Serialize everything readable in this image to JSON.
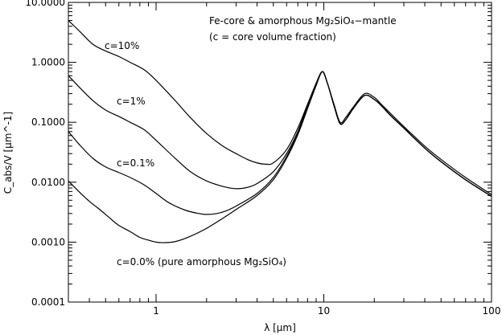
{
  "chart_data": {
    "type": "line",
    "xlabel": "λ [μm]",
    "ylabel": "C_abs/V [μm^-1]",
    "xscale": "log",
    "yscale": "log",
    "xlim": [
      0.3,
      100
    ],
    "ylim": [
      0.0001,
      10
    ],
    "grid": false,
    "legend": "none",
    "x_ticks": [
      {
        "value": 1,
        "label": "1"
      },
      {
        "value": 10,
        "label": "10"
      },
      {
        "value": 100,
        "label": "100"
      }
    ],
    "y_ticks": [
      {
        "value": 10,
        "label": "10.0000"
      },
      {
        "value": 1,
        "label": "1.0000"
      },
      {
        "value": 0.1,
        "label": "0.1000"
      },
      {
        "value": 0.01,
        "label": "0.0100"
      },
      {
        "value": 0.001,
        "label": "0.0010"
      },
      {
        "value": 0.0001,
        "label": "0.0001"
      }
    ],
    "annotations": {
      "title_line1": "Fe-core & amorphous Mg₂SiO₄−mantle",
      "title_line2": "(c = core volume fraction)",
      "c10": "c=10%",
      "c1": "c=1%",
      "c01": "c=0.1%",
      "c0": "c=0.0% (pure amorphous Mg₂SiO₄)"
    },
    "series": [
      {
        "name": "c=10%",
        "x": [
          0.3,
          0.35,
          0.42,
          0.5,
          0.6,
          0.7,
          0.85,
          1.0,
          1.3,
          1.6,
          2.0,
          2.5,
          3.0,
          3.5,
          4.0,
          4.5,
          5.0,
          6.0,
          7.0,
          8.0,
          9.0,
          9.8,
          10.5,
          11.5,
          12.5,
          13.5,
          15.0,
          17.5,
          20.0,
          22.0,
          25.0,
          30.0,
          40.0,
          50.0,
          70.0,
          100.0
        ],
        "y": [
          5.0,
          3.3,
          2.0,
          1.55,
          1.25,
          1.0,
          0.75,
          0.5,
          0.23,
          0.12,
          0.065,
          0.04,
          0.03,
          0.024,
          0.021,
          0.02,
          0.021,
          0.035,
          0.08,
          0.2,
          0.45,
          0.7,
          0.45,
          0.2,
          0.1,
          0.12,
          0.18,
          0.3,
          0.26,
          0.2,
          0.14,
          0.085,
          0.04,
          0.024,
          0.012,
          0.0062
        ]
      },
      {
        "name": "c=1%",
        "x": [
          0.3,
          0.35,
          0.42,
          0.5,
          0.6,
          0.7,
          0.85,
          1.0,
          1.3,
          1.6,
          2.0,
          2.5,
          3.0,
          3.5,
          4.0,
          5.0,
          6.0,
          7.0,
          8.0,
          9.0,
          9.8,
          10.5,
          11.5,
          12.5,
          13.5,
          15.0,
          17.5,
          20.0,
          22.0,
          25.0,
          30.0,
          40.0,
          50.0,
          70.0,
          100.0
        ],
        "y": [
          0.6,
          0.38,
          0.23,
          0.16,
          0.125,
          0.1,
          0.075,
          0.05,
          0.025,
          0.015,
          0.0105,
          0.0085,
          0.0078,
          0.0082,
          0.0095,
          0.015,
          0.03,
          0.07,
          0.19,
          0.43,
          0.7,
          0.45,
          0.19,
          0.095,
          0.11,
          0.17,
          0.28,
          0.24,
          0.19,
          0.13,
          0.08,
          0.037,
          0.022,
          0.011,
          0.0058
        ]
      },
      {
        "name": "c=0.1%",
        "x": [
          0.3,
          0.35,
          0.42,
          0.5,
          0.6,
          0.7,
          0.85,
          1.0,
          1.2,
          1.5,
          1.8,
          2.0,
          2.3,
          2.6,
          3.0,
          4.0,
          5.0,
          6.0,
          7.0,
          8.0,
          9.0,
          9.8,
          10.5,
          11.5,
          12.5,
          13.5,
          15.0,
          17.5,
          20.0,
          22.0,
          25.0,
          30.0,
          40.0,
          50.0,
          70.0,
          100.0
        ],
        "y": [
          0.07,
          0.042,
          0.025,
          0.018,
          0.0145,
          0.012,
          0.009,
          0.0065,
          0.0045,
          0.0034,
          0.003,
          0.0029,
          0.003,
          0.0033,
          0.004,
          0.0065,
          0.012,
          0.027,
          0.065,
          0.18,
          0.42,
          0.7,
          0.45,
          0.19,
          0.095,
          0.11,
          0.17,
          0.28,
          0.24,
          0.19,
          0.13,
          0.08,
          0.037,
          0.022,
          0.011,
          0.0058
        ]
      },
      {
        "name": "c=0.0%",
        "x": [
          0.3,
          0.35,
          0.4,
          0.45,
          0.5,
          0.55,
          0.6,
          0.7,
          0.8,
          0.9,
          1.0,
          1.1,
          1.3,
          1.6,
          2.0,
          2.5,
          3.0,
          4.0,
          5.0,
          6.0,
          7.0,
          8.0,
          9.0,
          9.8,
          10.5,
          11.5,
          12.5,
          13.5,
          15.0,
          17.5,
          20.0,
          22.0,
          25.0,
          30.0,
          40.0,
          50.0,
          70.0,
          100.0
        ],
        "y": [
          0.0105,
          0.0068,
          0.0048,
          0.0037,
          0.0029,
          0.0023,
          0.0019,
          0.0015,
          0.0012,
          0.00108,
          0.001,
          0.00098,
          0.00102,
          0.00125,
          0.0017,
          0.0025,
          0.0035,
          0.006,
          0.011,
          0.025,
          0.062,
          0.17,
          0.41,
          0.7,
          0.45,
          0.19,
          0.095,
          0.11,
          0.17,
          0.28,
          0.24,
          0.19,
          0.13,
          0.08,
          0.037,
          0.022,
          0.011,
          0.0058
        ]
      }
    ]
  }
}
